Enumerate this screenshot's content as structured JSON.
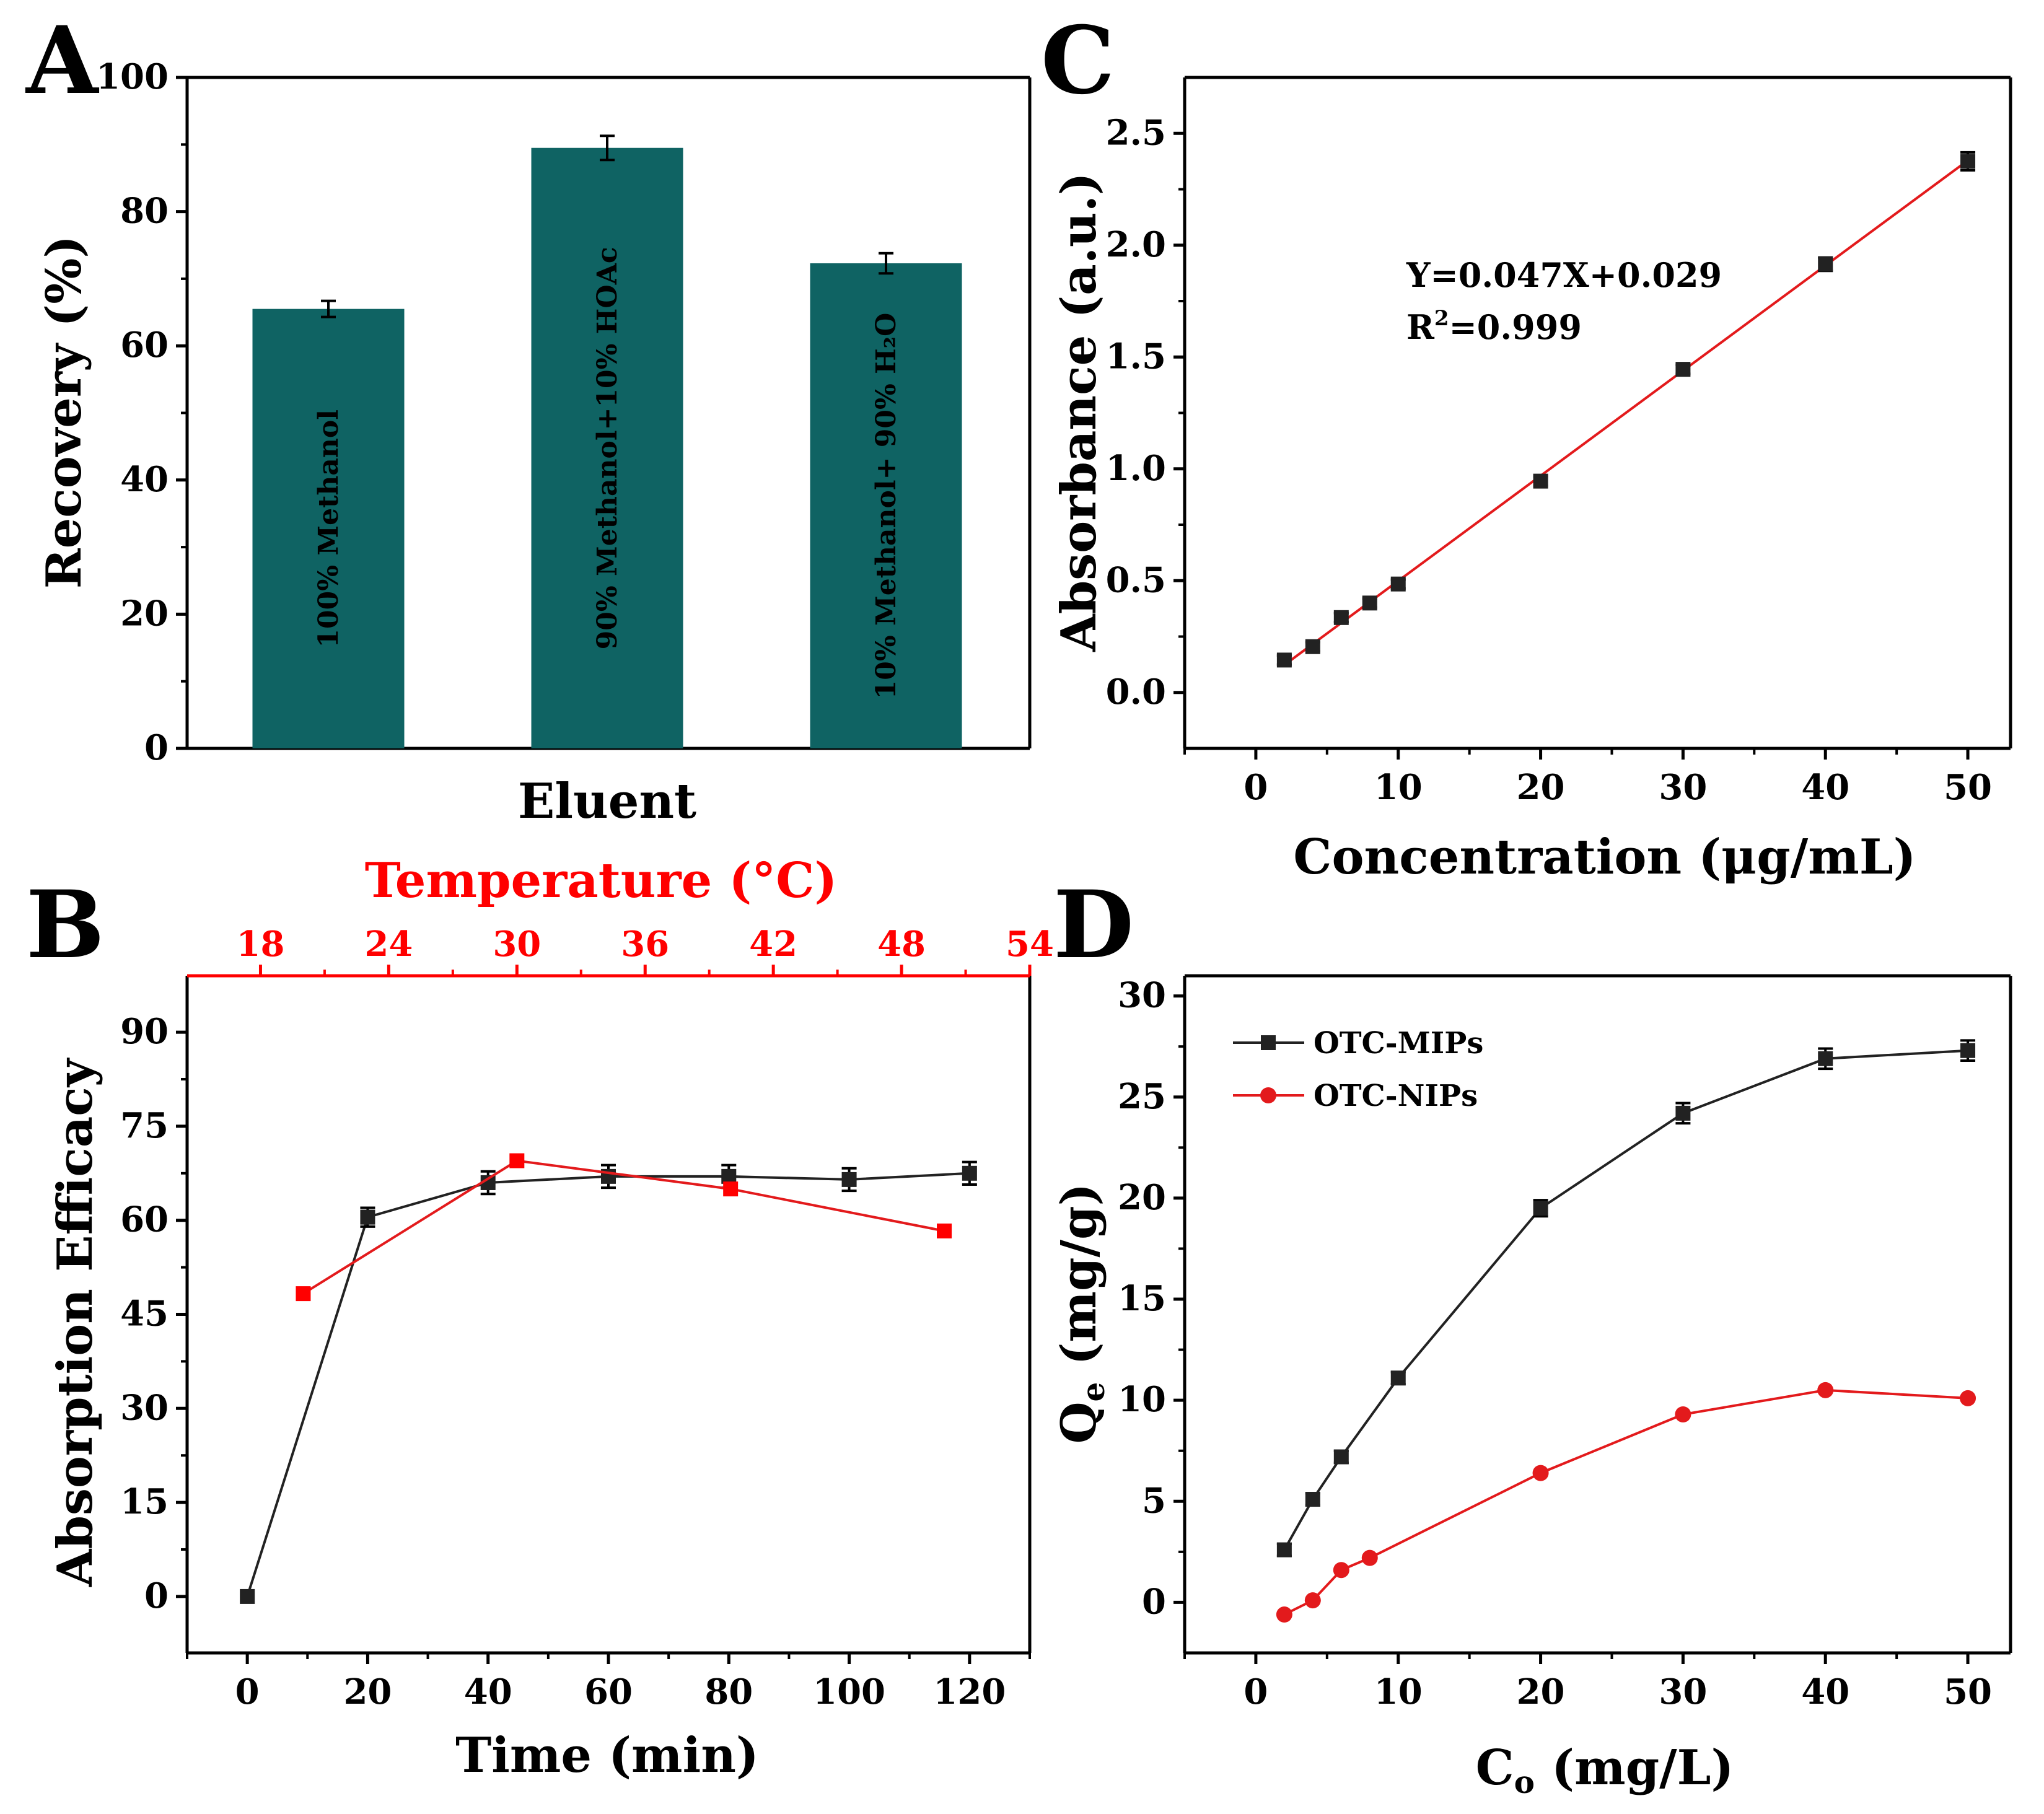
{
  "colors": {
    "bar": "#0f6363",
    "black_series": "#222222",
    "red_series": "#e31a1c",
    "red_axis": "#ff0000"
  },
  "chart_data": [
    {
      "panel": "A",
      "type": "bar",
      "xlabel": "Eluent",
      "ylabel": "Recovery (%)",
      "ylim": [
        0,
        100
      ],
      "yticks": [
        0,
        20,
        40,
        60,
        80,
        100
      ],
      "categories": [
        "100% Methanol",
        "90% Methanol+10%  HOAc",
        "10% Methanol+ 90% H₂O"
      ],
      "values": [
        65.5,
        89.5,
        72.3
      ],
      "errors": [
        1.2,
        1.8,
        1.5
      ]
    },
    {
      "panel": "B",
      "type": "line",
      "xlabel": "Time (min)",
      "ylabel": "Absorption Efficacy",
      "top_xlabel": "Temperature (°C)",
      "xlim": [
        -10,
        130
      ],
      "ylim": [
        -9,
        99
      ],
      "xticks": [
        0,
        20,
        40,
        60,
        80,
        100,
        120
      ],
      "yticks": [
        0,
        15,
        30,
        45,
        60,
        75,
        90
      ],
      "top_xlim": [
        15,
        54
      ],
      "top_xticks": [
        18,
        24,
        30,
        36,
        42,
        48,
        54
      ],
      "series": [
        {
          "name": "Time",
          "axis": "bottom",
          "x": [
            0,
            20,
            40,
            60,
            80,
            100,
            120
          ],
          "y": [
            0,
            60.5,
            66,
            67,
            67,
            66.5,
            67.5
          ],
          "errors": [
            0,
            1.5,
            1.8,
            1.8,
            1.8,
            1.8,
            1.8
          ]
        },
        {
          "name": "Temperature",
          "axis": "top",
          "x": [
            20,
            30,
            40,
            50
          ],
          "y": [
            48.3,
            69.5,
            65,
            58.3
          ]
        }
      ]
    },
    {
      "panel": "C",
      "type": "scatter",
      "xlabel": "Concentration (μg/mL)",
      "ylabel": "Absorbance (a.u.)",
      "xlim": [
        -5,
        53
      ],
      "ylim": [
        -0.25,
        2.75
      ],
      "xticks": [
        0,
        10,
        20,
        30,
        40,
        50
      ],
      "yticks": [
        0.0,
        0.5,
        1.0,
        1.5,
        2.0,
        2.5
      ],
      "x": [
        2,
        4,
        6,
        8,
        10,
        20,
        30,
        40,
        50
      ],
      "y": [
        0.145,
        0.205,
        0.335,
        0.4,
        0.485,
        0.945,
        1.445,
        1.915,
        2.375
      ],
      "errors": [
        0.02,
        0.02,
        0.02,
        0.02,
        0.02,
        0.02,
        0.02,
        0.03,
        0.04
      ],
      "fit": {
        "slope": 0.047,
        "intercept": 0.029,
        "x_range": [
          2,
          50
        ]
      },
      "equation": "Y=0.047X+0.029",
      "r2_prefix": "R",
      "r2_sup": "2",
      "r2_value": "=0.999"
    },
    {
      "panel": "D",
      "type": "line",
      "xlabel_main": "C",
      "xlabel_sub": "o",
      "xlabel_rest": " (mg/L)",
      "ylabel_main": "Q",
      "ylabel_sub": "e",
      "ylabel_rest": " (mg/g)",
      "xlim": [
        -5,
        53
      ],
      "ylim": [
        -2.5,
        31
      ],
      "xticks": [
        0,
        10,
        20,
        30,
        40,
        50
      ],
      "yticks": [
        0,
        5,
        10,
        15,
        20,
        25,
        30
      ],
      "legend_position": "top-left",
      "series": [
        {
          "name": "OTC-MIPs",
          "marker": "square",
          "x": [
            2,
            4,
            6,
            8,
            10,
            20,
            30,
            40,
            50
          ],
          "y": [
            2.6,
            5.1,
            7.2,
            null,
            11.1,
            19.5,
            24.2,
            26.9,
            27.3
          ],
          "errors": [
            0.3,
            0.3,
            0.3,
            null,
            0.3,
            0.4,
            0.5,
            0.5,
            0.5
          ]
        },
        {
          "name": "OTC-NIPs",
          "marker": "circle",
          "x": [
            2,
            4,
            6,
            8,
            20,
            30,
            40,
            50
          ],
          "y": [
            -0.6,
            0.1,
            1.6,
            2.2,
            6.4,
            9.3,
            10.5,
            10.1
          ]
        }
      ]
    }
  ]
}
